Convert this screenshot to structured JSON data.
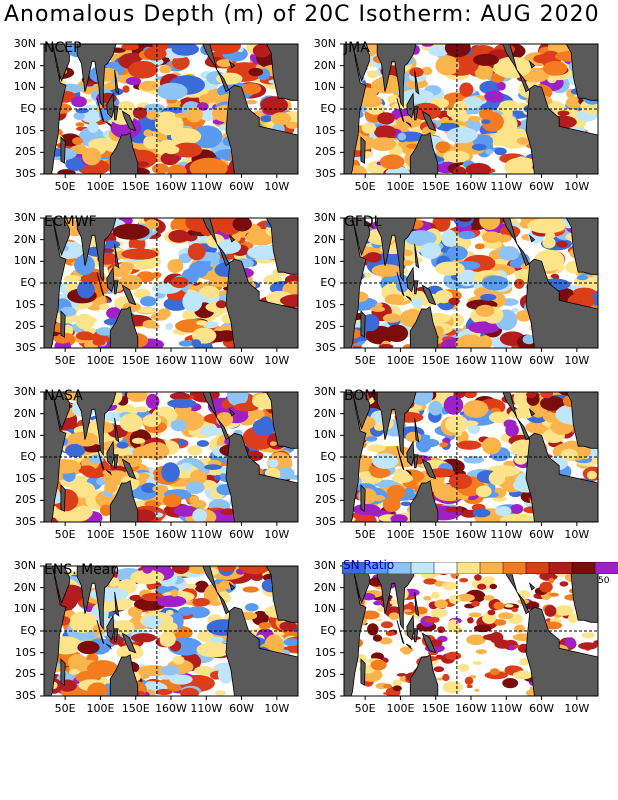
{
  "title": "Anomalous Depth (m) of 20C Isotherm: AUG 2020",
  "lat_labels": [
    "30N",
    "20N",
    "10N",
    "EQ",
    "10S",
    "20S",
    "30S"
  ],
  "lon_labels": [
    "50E",
    "100E",
    "150E",
    "160W",
    "110W",
    "60W",
    "10W"
  ],
  "panels": [
    {
      "name": "NCEP",
      "seed": 11
    },
    {
      "name": "JMA",
      "seed": 23
    },
    {
      "name": "ECMWF",
      "seed": 37
    },
    {
      "name": "GFDL",
      "seed": 41
    },
    {
      "name": "NASA",
      "seed": 53
    },
    {
      "name": "BOM",
      "seed": 67
    },
    {
      "name": "ENS. Mean",
      "seed": 79
    },
    {
      "name": "",
      "seed": 97,
      "signal_ratio": true
    }
  ],
  "colorbar": {
    "label": "SN Ratio",
    "max_label": "50",
    "colors": [
      "#3a6bd8",
      "#5a9af0",
      "#8ec4f5",
      "#bfe6fb",
      "#ffffff",
      "#fde48a",
      "#fbb44c",
      "#f47c1e",
      "#dc3e1a",
      "#b31d1d",
      "#7a0c0c",
      "#a020c8"
    ]
  },
  "colors": {
    "land": "#5a5a5a",
    "ocean": "#ffffff"
  }
}
